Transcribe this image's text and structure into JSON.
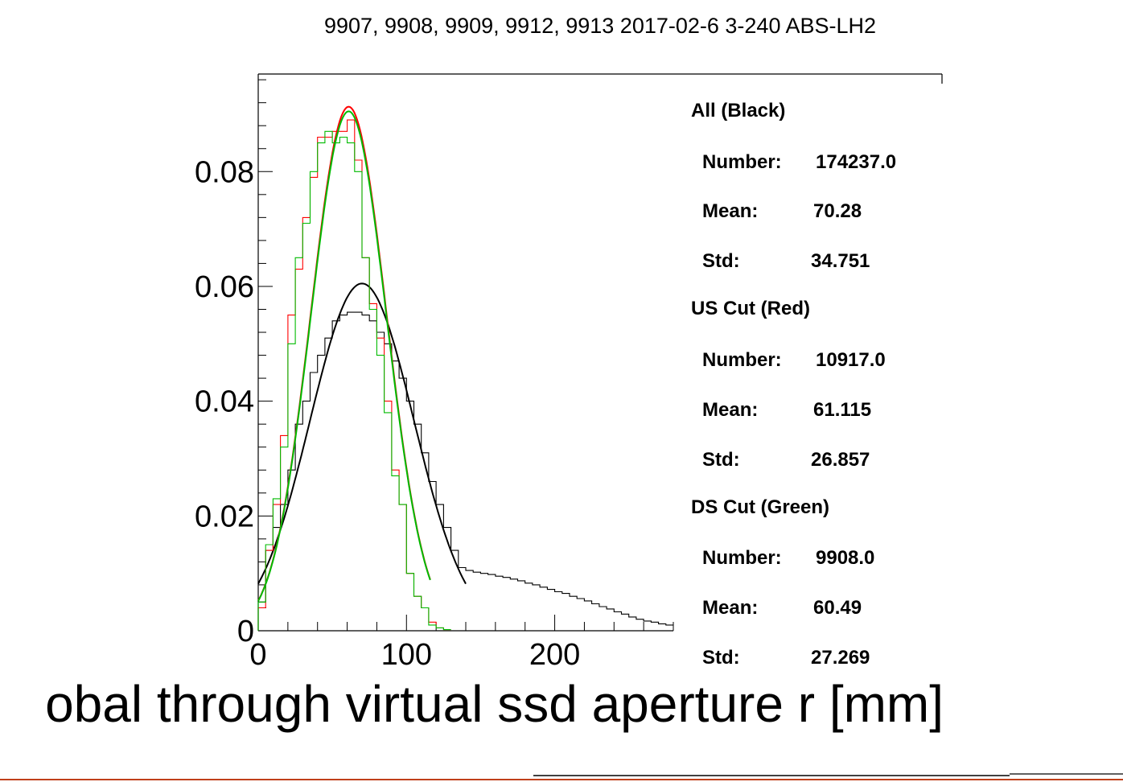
{
  "chart_data": {
    "type": "line",
    "title": "9907, 9908, 9909, 9912, 9913 2017-02-6 3-240 ABS-LH2",
    "xlabel": "obal through virtual ssd aperture r [mm]",
    "ylabel": "",
    "xlim": [
      0,
      280
    ],
    "ylim": [
      0,
      0.097
    ],
    "x_ticks": [
      "0",
      "100",
      "200"
    ],
    "y_ticks": [
      "0",
      "0.02",
      "0.04",
      "0.06",
      "0.08"
    ],
    "bin_width": 5,
    "series": [
      {
        "color": "#000000",
        "bin_values": [
          0.005,
          0.014,
          0.018,
          0.022,
          0.028,
          0.036,
          0.04,
          0.045,
          0.048,
          0.051,
          0.054,
          0.055,
          0.0555,
          0.0555,
          0.055,
          0.054,
          0.052,
          0.05,
          0.047,
          0.044,
          0.04,
          0.036,
          0.031,
          0.026,
          0.022,
          0.018,
          0.014,
          0.011,
          0.0105,
          0.0102,
          0.01,
          0.0098,
          0.0095,
          0.0093,
          0.009,
          0.0087,
          0.0083,
          0.008,
          0.0076,
          0.0072,
          0.0068,
          0.0065,
          0.006,
          0.0056,
          0.0052,
          0.0047,
          0.0042,
          0.0038,
          0.0033,
          0.0029,
          0.0024,
          0.002,
          0.0017,
          0.0015,
          0.0012,
          0.001
        ],
        "fit": {
          "amplitude": 0.0605,
          "mean": 70,
          "sigma": 35,
          "x_range": [
            0,
            140
          ]
        }
      },
      {
        "color": "#ff0000",
        "bin_values": [
          0.004,
          0.014,
          0.022,
          0.034,
          0.055,
          0.063,
          0.072,
          0.079,
          0.086,
          0.086,
          0.087,
          0.087,
          0.089,
          0.082,
          0.065,
          0.057,
          0.051,
          0.04,
          0.028,
          0.022,
          0.01,
          0.006,
          0.004,
          0.0015,
          0.0005,
          0.0002
        ],
        "fit": {
          "amplitude": 0.0913,
          "mean": 61,
          "sigma": 25.5,
          "x_range": [
            0,
            116
          ]
        }
      },
      {
        "color": "#00bb00",
        "bin_values": [
          0.005,
          0.015,
          0.023,
          0.032,
          0.05,
          0.065,
          0.071,
          0.08,
          0.085,
          0.087,
          0.085,
          0.086,
          0.085,
          0.08,
          0.065,
          0.056,
          0.048,
          0.038,
          0.027,
          0.022,
          0.01,
          0.006,
          0.004,
          0.001,
          0.0005,
          0.0002
        ],
        "fit": {
          "amplitude": 0.0905,
          "mean": 61,
          "sigma": 25.5,
          "x_range": [
            0,
            116
          ]
        }
      }
    ]
  },
  "stats": {
    "all": {
      "header": "All (Black)",
      "number_label": "Number:",
      "number_value": "174237.0",
      "mean_label": "Mean:",
      "mean_value": "70.28",
      "std_label": "Std:",
      "std_value": "34.751"
    },
    "us": {
      "header": "US Cut (Red)",
      "number_label": "Number:",
      "number_value": "10917.0",
      "mean_label": "Mean:",
      "mean_value": "61.115",
      "std_label": "Std:",
      "std_value": "26.857"
    },
    "ds": {
      "header": "DS Cut (Green)",
      "number_label": "Number:",
      "number_value": "9908.0",
      "mean_label": "Mean:",
      "mean_value": "60.49",
      "std_label": "Std:",
      "std_value": "27.269"
    }
  },
  "colors": {
    "bottom_rule": "#c0401a"
  }
}
